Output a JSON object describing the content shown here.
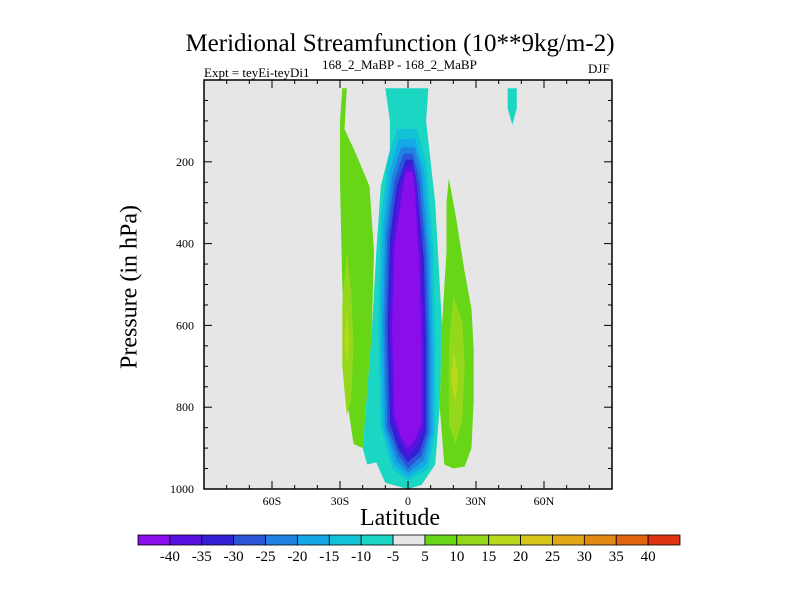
{
  "chart_data": {
    "type": "contour",
    "title": "Meridional Streamfunction (10**9kg/m-2)",
    "left_label": "Expt = teyEi-teyDi1",
    "subtitle": "168_2_MaBP - 168_2_MaBP",
    "season": "DJF",
    "xlabel": "Latitude",
    "ylabel": "Pressure (in hPa)",
    "xlim": [
      -90,
      90
    ],
    "ylim": [
      0,
      1000
    ],
    "y_inverted": true,
    "x_ticks": [
      {
        "value": -60,
        "label": "60S"
      },
      {
        "value": -30,
        "label": "30S"
      },
      {
        "value": 0,
        "label": "0"
      },
      {
        "value": 30,
        "label": "30N"
      },
      {
        "value": 60,
        "label": "60N"
      }
    ],
    "y_ticks": [
      {
        "value": 200,
        "label": "200"
      },
      {
        "value": 400,
        "label": "400"
      },
      {
        "value": 600,
        "label": "600"
      },
      {
        "value": 800,
        "label": "800"
      },
      {
        "value": 1000,
        "label": "1000"
      }
    ],
    "colorbar": {
      "labels": [
        "-40",
        "-35",
        "-30",
        "-25",
        "-20",
        "-15",
        "-10",
        "-5",
        "5",
        "10",
        "15",
        "20",
        "25",
        "30",
        "35",
        "40"
      ],
      "colors": [
        "#8a0eea",
        "#5a12e0",
        "#3320d6",
        "#2a55d6",
        "#1f82e0",
        "#16a8e6",
        "#12c2d6",
        "#1ad6c2",
        "#e6e6e6",
        "#66d617",
        "#93d81a",
        "#b9d91b",
        "#d8c619",
        "#e0a817",
        "#e28813",
        "#e2640f",
        "#de3510"
      ]
    },
    "regions": [
      {
        "name": "shading-cyan-core",
        "color": "#1ad6c2",
        "points": [
          [
            -10,
            20
          ],
          [
            -8,
            100
          ],
          [
            -8,
            170
          ],
          [
            -12,
            260
          ],
          [
            -14,
            420
          ],
          [
            -16,
            620
          ],
          [
            -18,
            760
          ],
          [
            -20,
            900
          ],
          [
            -18,
            940
          ],
          [
            -14,
            935
          ],
          [
            -10,
            985
          ],
          [
            0,
            1000
          ],
          [
            6,
            990
          ],
          [
            12,
            940
          ],
          [
            14,
            800
          ],
          [
            15,
            600
          ],
          [
            12,
            300
          ],
          [
            8,
            100
          ],
          [
            9,
            20
          ]
        ]
      },
      {
        "name": "shading-cyan-top-patch",
        "color": "#1ad6c2",
        "points": [
          [
            44,
            20
          ],
          [
            48,
            20
          ],
          [
            48,
            70
          ],
          [
            46,
            110
          ],
          [
            44,
            70
          ]
        ]
      },
      {
        "name": "shading-green-left",
        "color": "#66d617",
        "points": [
          [
            -29,
            20
          ],
          [
            -27,
            20
          ],
          [
            -28,
            120
          ],
          [
            -23,
            180
          ],
          [
            -17,
            260
          ],
          [
            -15,
            420
          ],
          [
            -16,
            620
          ],
          [
            -18,
            760
          ],
          [
            -20,
            900
          ],
          [
            -24,
            890
          ],
          [
            -27,
            780
          ],
          [
            -28,
            650
          ],
          [
            -29,
            500
          ],
          [
            -30,
            250
          ],
          [
            -30,
            100
          ]
        ]
      },
      {
        "name": "shading-green-right",
        "color": "#66d617",
        "points": [
          [
            18,
            240
          ],
          [
            21,
            330
          ],
          [
            25,
            470
          ],
          [
            28,
            560
          ],
          [
            29,
            660
          ],
          [
            29,
            780
          ],
          [
            28,
            900
          ],
          [
            25,
            945
          ],
          [
            20,
            950
          ],
          [
            16,
            940
          ],
          [
            14,
            800
          ],
          [
            15,
            600
          ],
          [
            17,
            420
          ],
          [
            17,
            300
          ]
        ]
      },
      {
        "name": "shading-lime-left",
        "color": "#93d81a",
        "points": [
          [
            -27,
            420
          ],
          [
            -25,
            520
          ],
          [
            -24,
            650
          ],
          [
            -25,
            780
          ],
          [
            -27,
            820
          ],
          [
            -29,
            700
          ],
          [
            -29,
            550
          ]
        ]
      },
      {
        "name": "shading-lime-right",
        "color": "#93d81a",
        "points": [
          [
            20,
            530
          ],
          [
            24,
            590
          ],
          [
            25,
            700
          ],
          [
            24,
            830
          ],
          [
            21,
            890
          ],
          [
            18,
            840
          ],
          [
            18,
            650
          ]
        ]
      },
      {
        "name": "shading-yellow-left",
        "color": "#b9d91b",
        "points": [
          [
            -27,
            560
          ],
          [
            -26,
            640
          ],
          [
            -27,
            700
          ],
          [
            -28,
            630
          ]
        ]
      },
      {
        "name": "shading-yellow-right",
        "color": "#b9d91b",
        "points": [
          [
            20,
            660
          ],
          [
            22,
            720
          ],
          [
            21,
            790
          ],
          [
            19,
            740
          ]
        ]
      },
      {
        "name": "shading-c-10",
        "color": "#12c2d6",
        "points": [
          [
            -5,
            120
          ],
          [
            4,
            120
          ],
          [
            8,
            200
          ],
          [
            11,
            400
          ],
          [
            12,
            650
          ],
          [
            12,
            860
          ],
          [
            9,
            950
          ],
          [
            0,
            980
          ],
          [
            -7,
            950
          ],
          [
            -12,
            850
          ],
          [
            -13,
            600
          ],
          [
            -12,
            350
          ],
          [
            -9,
            200
          ]
        ]
      },
      {
        "name": "shading-c-15",
        "color": "#16a8e6",
        "points": [
          [
            -4,
            145
          ],
          [
            3,
            145
          ],
          [
            7,
            220
          ],
          [
            10,
            420
          ],
          [
            11,
            660
          ],
          [
            11,
            860
          ],
          [
            8,
            940
          ],
          [
            0,
            970
          ],
          [
            -6,
            940
          ],
          [
            -11,
            850
          ],
          [
            -12,
            600
          ],
          [
            -11,
            360
          ],
          [
            -8,
            220
          ]
        ]
      },
      {
        "name": "shading-c-20",
        "color": "#1f82e0",
        "points": [
          [
            -3,
            165
          ],
          [
            3,
            165
          ],
          [
            6,
            230
          ],
          [
            9,
            430
          ],
          [
            10,
            660
          ],
          [
            10,
            860
          ],
          [
            7,
            930
          ],
          [
            0,
            960
          ],
          [
            -5,
            930
          ],
          [
            -10,
            850
          ],
          [
            -11,
            600
          ],
          [
            -10,
            370
          ],
          [
            -7,
            235
          ]
        ]
      },
      {
        "name": "shading-c-25",
        "color": "#2a55d6",
        "points": [
          [
            -2,
            180
          ],
          [
            2,
            180
          ],
          [
            5,
            240
          ],
          [
            8,
            430
          ],
          [
            9,
            650
          ],
          [
            9,
            860
          ],
          [
            6,
            920
          ],
          [
            0,
            950
          ],
          [
            -4,
            920
          ],
          [
            -9,
            850
          ],
          [
            -10,
            600
          ],
          [
            -9,
            380
          ],
          [
            -6,
            245
          ]
        ]
      },
      {
        "name": "shading-c-30",
        "color": "#3320d6",
        "points": [
          [
            -1,
            195
          ],
          [
            2,
            195
          ],
          [
            4,
            255
          ],
          [
            7,
            440
          ],
          [
            8,
            650
          ],
          [
            8,
            860
          ],
          [
            5,
            910
          ],
          [
            0,
            935
          ],
          [
            -4,
            905
          ],
          [
            -8,
            840
          ],
          [
            -9,
            600
          ],
          [
            -8,
            390
          ],
          [
            -5,
            260
          ]
        ]
      },
      {
        "name": "shading-c-35",
        "color": "#5a12e0",
        "points": [
          [
            -1,
            210
          ],
          [
            2,
            210
          ],
          [
            4,
            260
          ],
          [
            6,
            450
          ],
          [
            7,
            650
          ],
          [
            7,
            850
          ],
          [
            4,
            895
          ],
          [
            0,
            920
          ],
          [
            -3,
            890
          ],
          [
            -7,
            830
          ],
          [
            -8,
            600
          ],
          [
            -7,
            400
          ],
          [
            -4,
            270
          ]
        ]
      },
      {
        "name": "shading-c-40",
        "color": "#8a0eea",
        "points": [
          [
            -1,
            225
          ],
          [
            2,
            225
          ],
          [
            3,
            270
          ],
          [
            5,
            450
          ],
          [
            6,
            650
          ],
          [
            6,
            840
          ],
          [
            3,
            880
          ],
          [
            0,
            900
          ],
          [
            -3,
            875
          ],
          [
            -6,
            820
          ],
          [
            -7,
            600
          ],
          [
            -6,
            410
          ],
          [
            -3,
            290
          ]
        ]
      }
    ]
  }
}
